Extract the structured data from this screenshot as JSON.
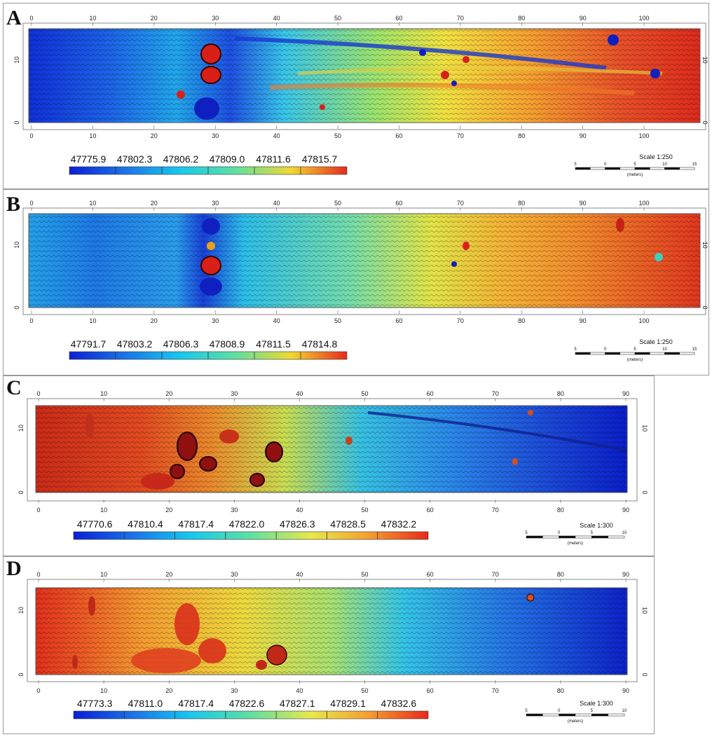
{
  "panels": [
    {
      "label": "A",
      "x_ticks": [
        "0",
        "10",
        "20",
        "30",
        "40",
        "50",
        "60",
        "70",
        "80",
        "90",
        "100"
      ],
      "y_ticks": [
        "0",
        "10"
      ],
      "legend_values": [
        "47775.9",
        "47802.3",
        "47806.2",
        "47809.0",
        "47811.6",
        "47815.7"
      ],
      "scale_label": "Scale 1:250",
      "scale_ticks": [
        "5",
        "0",
        "5",
        "10",
        "15"
      ],
      "scale_unit": "(meters)"
    },
    {
      "label": "B",
      "x_ticks": [
        "0",
        "10",
        "20",
        "30",
        "40",
        "50",
        "60",
        "70",
        "80",
        "90",
        "100"
      ],
      "y_ticks": [
        "0",
        "10"
      ],
      "legend_values": [
        "47791.7",
        "47803.2",
        "47806.3",
        "47808.9",
        "47811.5",
        "47814.8"
      ],
      "scale_label": "Scale 1:250",
      "scale_ticks": [
        "5",
        "0",
        "5",
        "10",
        "15"
      ],
      "scale_unit": "(meters)"
    },
    {
      "label": "C",
      "x_ticks": [
        "0",
        "10",
        "20",
        "30",
        "40",
        "50",
        "60",
        "70",
        "80",
        "90"
      ],
      "y_ticks": [
        "0",
        "10"
      ],
      "legend_values": [
        "47770.6",
        "47810.4",
        "47817.4",
        "47822.0",
        "47826.3",
        "47828.5",
        "47832.2"
      ],
      "scale_label": "Scale 1:300",
      "scale_ticks": [
        "5",
        "0",
        "5",
        "10"
      ],
      "scale_unit": "(meters)"
    },
    {
      "label": "D",
      "x_ticks": [
        "0",
        "10",
        "20",
        "30",
        "40",
        "50",
        "60",
        "70",
        "80",
        "90"
      ],
      "y_ticks": [
        "0",
        "10"
      ],
      "legend_values": [
        "47773.3",
        "47811.0",
        "47817.4",
        "47822.6",
        "47827.1",
        "47829.1",
        "47832.6"
      ],
      "scale_label": "Scale 1:300",
      "scale_ticks": [
        "5",
        "0",
        "5",
        "10"
      ],
      "scale_unit": "(meters)"
    }
  ],
  "colors": {
    "ramp": [
      "#0b1fd6",
      "#1a74e8",
      "#17c8ee",
      "#5fe0a0",
      "#e8e84a",
      "#f5a030",
      "#e83020"
    ]
  }
}
